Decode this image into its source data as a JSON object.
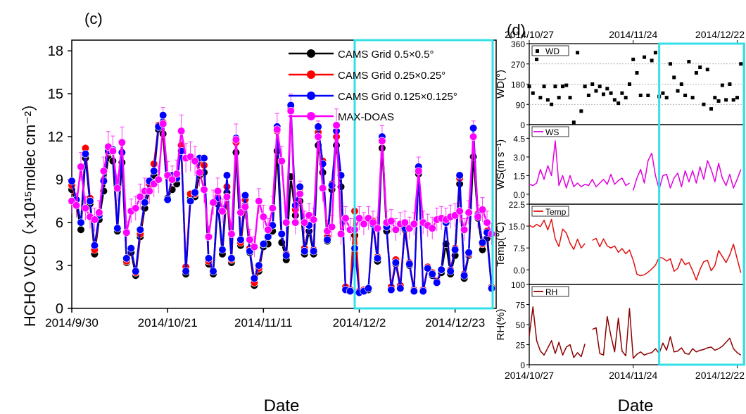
{
  "panel_c": {
    "label": "(c)",
    "ylabel": "HCHO VCD（×10¹⁵molec cm⁻²）",
    "xlabel": "Date"
  },
  "panel_d": {
    "label": "(d)",
    "xlabel": "Date"
  },
  "colors": {
    "cams05": "#000000",
    "cams025": "#ff0000",
    "cams0125": "#0000ff",
    "maxdoas": "#ff00ff",
    "box": "#33e0e8",
    "ws": "#e000e0",
    "temp": "#e01010",
    "rh": "#8b0000"
  },
  "chart_data": [
    {
      "type": "line",
      "x_axis": "date",
      "x_tick_labels": [
        "2014/9/30",
        "2014/10/21",
        "2014/11/11",
        "2014/12/2",
        "2014/12/23"
      ],
      "x_tick_dates": [
        "2014-09-30",
        "2014-10-21",
        "2014-11-11",
        "2014-12-02",
        "2014-12-23"
      ],
      "xlim": [
        "2014-09-30",
        "2015-01-01"
      ],
      "ylim": [
        0,
        18.75
      ],
      "yticks": [
        0,
        3,
        6,
        9,
        12,
        15,
        18
      ],
      "ylabel": "HCHO VCD（×10¹⁵molec cm⁻²）",
      "xlabel": "Date",
      "highlight_range": [
        "2014-12-01",
        "2015-01-01"
      ],
      "dates": [
        "2014-09-30",
        "2014-10-01",
        "2014-10-02",
        "2014-10-03",
        "2014-10-04",
        "2014-10-05",
        "2014-10-06",
        "2014-10-07",
        "2014-10-08",
        "2014-10-09",
        "2014-10-10",
        "2014-10-11",
        "2014-10-12",
        "2014-10-13",
        "2014-10-14",
        "2014-10-15",
        "2014-10-16",
        "2014-10-17",
        "2014-10-18",
        "2014-10-19",
        "2014-10-20",
        "2014-10-21",
        "2014-10-22",
        "2014-10-23",
        "2014-10-24",
        "2014-10-25",
        "2014-10-26",
        "2014-10-27",
        "2014-10-28",
        "2014-10-29",
        "2014-10-30",
        "2014-10-31",
        "2014-11-01",
        "2014-11-02",
        "2014-11-03",
        "2014-11-04",
        "2014-11-05",
        "2014-11-06",
        "2014-11-07",
        "2014-11-08",
        "2014-11-09",
        "2014-11-10",
        "2014-11-11",
        "2014-11-12",
        "2014-11-13",
        "2014-11-14",
        "2014-11-15",
        "2014-11-16",
        "2014-11-17",
        "2014-11-18",
        "2014-11-19",
        "2014-11-20",
        "2014-11-21",
        "2014-11-22",
        "2014-11-23",
        "2014-11-24",
        "2014-11-25",
        "2014-11-26",
        "2014-11-27",
        "2014-11-28",
        "2014-11-29",
        "2014-11-30",
        "2014-12-01",
        "2014-12-02",
        "2014-12-03",
        "2014-12-04",
        "2014-12-05",
        "2014-12-06",
        "2014-12-07",
        "2014-12-08",
        "2014-12-09",
        "2014-12-10",
        "2014-12-11",
        "2014-12-12",
        "2014-12-13",
        "2014-12-14",
        "2014-12-15",
        "2014-12-16",
        "2014-12-17",
        "2014-12-18",
        "2014-12-19",
        "2014-12-20",
        "2014-12-21",
        "2014-12-22",
        "2014-12-23",
        "2014-12-24",
        "2014-12-25",
        "2014-12-26",
        "2014-12-27",
        "2014-12-28",
        "2014-12-29",
        "2014-12-30",
        "2014-12-31"
      ],
      "series": [
        {
          "name": "CAMS Grid  0.5×0.5°",
          "marker_color": "#000000",
          "values": [
            8.3,
            7.2,
            5.5,
            10.5,
            7.3,
            3.8,
            6.2,
            8.2,
            10.5,
            10.3,
            5.4,
            10.2,
            3.2,
            3.9,
            2.3,
            5.0,
            7.0,
            8.2,
            9.3,
            12.5,
            12.2,
            7.7,
            8.3,
            8.7,
            11.4,
            2.4,
            7.7,
            7.8,
            9.3,
            9.5,
            3.1,
            2.4,
            7.3,
            3.8,
            8.1,
            3.2,
            10.9,
            4.4,
            7.2,
            3.9,
            1.6,
            2.6,
            4.3,
            4.5,
            5.4,
            11.0,
            4.6,
            3.4,
            9.2,
            6.5,
            7.5,
            3.8,
            5.4,
            3.8,
            11.4,
            9.5,
            4.7,
            8.3,
            11.4,
            8.5,
            1.3,
            1.2,
            5.1,
            1.1,
            1.2,
            1.3,
            5.9,
            3.3,
            11.2,
            5.4,
            1.4,
            3.1,
            1.5,
            5.5,
            3.0,
            1.2,
            9.4,
            1.2,
            2.8,
            2.3,
            1.8,
            2.5,
            4.5,
            2.4,
            3.7,
            8.7,
            2.1,
            3.7,
            10.6,
            6.3,
            4.1,
            4.9,
            1.4
          ]
        },
        {
          "name": "CAMS Grid  0.25×0.25°",
          "marker_color": "#ff0000",
          "values": [
            8.6,
            7.6,
            6.0,
            11.2,
            7.7,
            4.1,
            6.5,
            9.0,
            10.9,
            11.1,
            5.6,
            10.9,
            3.3,
            4.2,
            2.5,
            5.2,
            7.4,
            8.7,
            10.1,
            12.8,
            13.0,
            7.6,
            9.0,
            9.1,
            11.4,
            2.9,
            8.0,
            8.0,
            10.2,
            10.0,
            3.3,
            2.6,
            7.8,
            4.1,
            8.5,
            3.4,
            11.6,
            4.6,
            7.6,
            4.2,
            1.8,
            2.8,
            4.5,
            5.0,
            5.8,
            12.4,
            5.2,
            3.8,
            14.0,
            6.9,
            8.4,
            4.2,
            5.8,
            4.1,
            12.3,
            10.3,
            5.0,
            8.7,
            12.0,
            9.3,
            1.5,
            1.3,
            6.8,
            1.2,
            1.3,
            1.4,
            6.1,
            3.6,
            12.0,
            5.7,
            1.5,
            3.4,
            1.6,
            5.9,
            3.2,
            1.3,
            9.7,
            1.3,
            2.9,
            2.5,
            1.9,
            2.7,
            6.1,
            2.7,
            4.2,
            9.1,
            2.4,
            3.8,
            12.6,
            6.6,
            4.5,
            5.4,
            1.5
          ]
        },
        {
          "name": "CAMS Grid  0.125×0.125°",
          "marker_color": "#0000ff",
          "values": [
            8.9,
            7.6,
            6.0,
            10.8,
            7.5,
            4.4,
            6.5,
            8.9,
            11.0,
            11.1,
            5.6,
            10.9,
            3.5,
            4.2,
            2.6,
            5.5,
            7.4,
            8.9,
            9.6,
            12.7,
            13.5,
            7.6,
            9.3,
            9.1,
            11.0,
            2.6,
            7.5,
            8.1,
            10.5,
            10.5,
            3.5,
            2.6,
            7.7,
            4.1,
            9.3,
            3.5,
            11.9,
            4.8,
            7.9,
            4.0,
            2.1,
            3.0,
            4.5,
            5.0,
            5.8,
            12.7,
            5.2,
            3.7,
            14.2,
            7.2,
            8.5,
            4.0,
            5.8,
            4.0,
            12.7,
            10.1,
            4.8,
            8.6,
            12.4,
            9.3,
            1.3,
            1.2,
            4.2,
            1.1,
            1.2,
            1.4,
            5.9,
            3.5,
            12.0,
            5.7,
            1.3,
            3.2,
            1.4,
            5.6,
            3.1,
            1.2,
            9.9,
            1.2,
            2.8,
            2.4,
            1.8,
            2.7,
            6.0,
            2.6,
            4.1,
            9.3,
            2.3,
            3.9,
            12.6,
            6.5,
            4.6,
            5.3,
            1.4
          ]
        },
        {
          "name": "MAX-DOAS",
          "marker_color": "#ff00ff",
          "values": [
            7.5,
            7.2,
            9.9,
            7.0,
            6.4,
            6.2,
            6.7,
            9.6,
            11.3,
            11.0,
            8.4,
            11.6,
            5.3,
            6.8,
            7.0,
            7.8,
            8.2,
            8.2,
            8.7,
            9.0,
            12.9,
            9.3,
            9.0,
            9.4,
            12.4,
            10.5,
            10.6,
            10.3,
            9.5,
            8.3,
            5.0,
            7.4,
            8.2,
            6.8,
            7.8,
            5.2,
            11.8,
            6.7,
            7.1,
            4.8,
            4.3,
            7.5,
            6.4,
            5.5,
            7.0,
            12.5,
            10.3,
            6.0,
            13.8,
            6.0,
            8.0,
            6.0,
            6.5,
            6.2,
            12.0,
            8.4,
            5.4,
            5.7,
            12.8,
            5.2,
            6.3,
            5.5,
            5.5,
            6.3,
            5.9,
            6.3,
            6.0,
            5.6,
            11.7,
            6.0,
            6.1,
            5.5,
            5.9,
            6.0,
            5.6,
            5.9,
            9.6,
            6.0,
            5.8,
            5.6,
            6.2,
            6.3,
            6.2,
            6.4,
            6.5,
            6.8,
            5.5,
            6.7,
            12.0,
            6.4,
            6.9,
            6.0,
            5.2
          ]
        }
      ],
      "legend": "top-right"
    },
    {
      "type": "scatter",
      "series_name": "WD",
      "ylabel": "WD(°)",
      "ylim": [
        0,
        360
      ],
      "yticks": [
        0,
        90,
        180,
        270,
        360
      ],
      "x_tick_labels_top": [
        "2014/10/27",
        "2014/11/24",
        "2014/12/22"
      ],
      "x_tick_labels_bottom": [
        "2014/10/27",
        "2014/11/24",
        "2014/12/22"
      ],
      "xlim": [
        "2014-10-27",
        "2014-12-24"
      ],
      "highlight_range": [
        "2014-12-01",
        "2014-12-24"
      ],
      "dates": [
        "2014-10-27",
        "2014-10-28",
        "2014-10-29",
        "2014-10-30",
        "2014-10-31",
        "2014-11-01",
        "2014-11-02",
        "2014-11-03",
        "2014-11-04",
        "2014-11-05",
        "2014-11-06",
        "2014-11-07",
        "2014-11-08",
        "2014-11-09",
        "2014-11-10",
        "2014-11-11",
        "2014-11-12",
        "2014-11-13",
        "2014-11-14",
        "2014-11-15",
        "2014-11-16",
        "2014-11-17",
        "2014-11-18",
        "2014-11-19",
        "2014-11-20",
        "2014-11-21",
        "2014-11-22",
        "2014-11-23",
        "2014-11-24",
        "2014-11-25",
        "2014-11-26",
        "2014-11-27",
        "2014-11-28",
        "2014-11-29",
        "2014-11-30",
        "2014-12-01",
        "2014-12-02",
        "2014-12-03",
        "2014-12-04",
        "2014-12-05",
        "2014-12-06",
        "2014-12-07",
        "2014-12-08",
        "2014-12-09",
        "2014-12-10",
        "2014-12-11",
        "2014-12-12",
        "2014-12-13",
        "2014-12-14",
        "2014-12-15",
        "2014-12-16",
        "2014-12-17",
        "2014-12-18",
        "2014-12-19",
        "2014-12-20",
        "2014-12-21",
        "2014-12-22",
        "2014-12-23"
      ],
      "values": [
        170,
        140,
        290,
        120,
        170,
        110,
        90,
        170,
        120,
        170,
        175,
        120,
        10,
        320,
        60,
        170,
        130,
        180,
        150,
        170,
        135,
        160,
        140,
        110,
        95,
        140,
        120,
        180,
        290,
        230,
        130,
        300,
        130,
        285,
        320,
        125,
        140,
        120,
        270,
        210,
        150,
        180,
        130,
        280,
        120,
        230,
        255,
        90,
        245,
        70,
        120,
        105,
        175,
        110,
        180,
        110,
        120,
        270
      ]
    },
    {
      "type": "line",
      "series_name": "WS",
      "ylabel": "WS(m s⁻¹)",
      "ylim": [
        -0.8,
        5.6
      ],
      "yticks": [
        0.0,
        1.5,
        3.0,
        4.5
      ],
      "xlim": [
        "2014-10-27",
        "2014-12-24"
      ],
      "values": [
        0.8,
        0.7,
        0.9,
        2.0,
        1.2,
        2.3,
        1.5,
        4.3,
        0.7,
        1.5,
        0.5,
        1.5,
        0.6,
        0.9,
        0.6,
        0.8,
        0.7,
        1.2,
        0.6,
        0.9,
        1.2,
        0.8,
        1.6,
        0.8,
        1.1,
        1.3,
        0.7,
        0.9,
        0.3,
        1.3,
        2.0,
        0.9,
        2.7,
        3.3,
        1.5,
        0.4,
        1.5,
        1.6,
        0.5,
        1.3,
        1.7,
        0.6,
        1.9,
        1.0,
        1.9,
        0.9,
        2.2,
        1.2,
        2.7,
        2.0,
        1.0,
        2.5,
        1.3,
        0.7,
        1.6,
        0.5,
        1.2,
        2.0
      ],
      "gaps_after_index": [
        27
      ]
    },
    {
      "type": "line",
      "series_name": "Temp",
      "ylabel": "Temp(℃)",
      "ylim": [
        -5,
        22.5
      ],
      "yticks": [
        0.0,
        7.5,
        15.0,
        22.5
      ],
      "xlim": [
        "2014-10-27",
        "2014-12-24"
      ],
      "values": [
        15.3,
        14.6,
        15.6,
        14.8,
        17.0,
        13.7,
        17.3,
        10.6,
        8.0,
        14.0,
        12.6,
        9.1,
        7.0,
        10.5,
        7.5,
        9.0,
        null,
        10.1,
        10.8,
        7.9,
        10.6,
        8.2,
        7.5,
        8.2,
        6.0,
        7.3,
        5.5,
        6.8,
        3.3,
        -1.5,
        -2.0,
        -1.7,
        -0.8,
        0.3,
        1.6,
        4.3,
        4.0,
        3.0,
        3.8,
        -0.5,
        0.5,
        3.8,
        1.8,
        2.5,
        -0.2,
        -3.5,
        0.2,
        2.8,
        3.3,
        -0.3,
        1.5,
        6.6,
        4.6,
        2.5,
        5.1,
        8.8,
        3.8,
        -1.0
      ]
    },
    {
      "type": "line",
      "series_name": "RH",
      "ylabel": "RH(%)",
      "ylim": [
        0,
        100
      ],
      "yticks": [
        0,
        25,
        50,
        75,
        100
      ],
      "xlim": [
        "2014-10-27",
        "2014-12-24"
      ],
      "values": [
        36,
        72,
        30,
        17,
        12,
        21,
        30,
        14,
        28,
        12,
        22,
        25,
        9,
        15,
        10,
        26,
        null,
        44,
        46,
        14,
        12,
        60,
        36,
        16,
        58,
        17,
        11,
        70,
        8,
        13,
        16,
        12,
        14,
        15,
        20,
        14,
        27,
        18,
        35,
        16,
        17,
        21,
        14,
        13,
        20,
        16,
        18,
        19,
        21,
        22,
        18,
        20,
        23,
        28,
        33,
        20,
        15,
        12
      ]
    }
  ]
}
